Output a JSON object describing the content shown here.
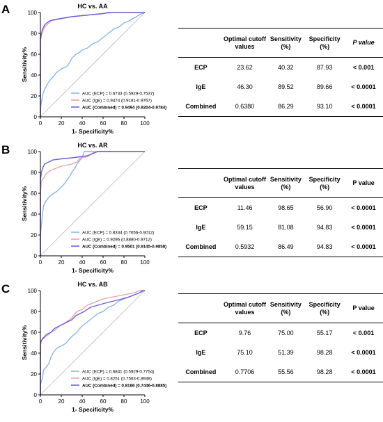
{
  "panels": [
    {
      "letter": "A",
      "chart_data": {
        "type": "line",
        "title": "HC vs. AA",
        "xlabel": "1- Specificity%",
        "ylabel": "Sensitivity%",
        "xlim": [
          0,
          100
        ],
        "ylim": [
          0,
          100
        ],
        "xticks": [
          0,
          20,
          40,
          60,
          80,
          100
        ],
        "yticks": [
          0,
          20,
          40,
          60,
          80,
          100
        ],
        "grid": false,
        "reference_line": [
          [
            0,
            0
          ],
          [
            100,
            100
          ]
        ],
        "legend_position": "bottom-right",
        "series": [
          {
            "name": "AUC (ECP) = 0.6733 (0.5929-0.7537)",
            "color": "#8ab4f0",
            "points": [
              [
                0,
                0
              ],
              [
                0,
                8
              ],
              [
                1,
                14
              ],
              [
                2,
                20
              ],
              [
                3,
                24
              ],
              [
                5,
                28
              ],
              [
                7,
                32
              ],
              [
                10,
                36
              ],
              [
                12,
                38
              ],
              [
                15,
                42
              ],
              [
                20,
                46
              ],
              [
                25,
                48
              ],
              [
                28,
                52
              ],
              [
                30,
                56
              ],
              [
                34,
                60
              ],
              [
                38,
                62
              ],
              [
                40,
                64
              ],
              [
                45,
                66
              ],
              [
                50,
                70
              ],
              [
                55,
                72
              ],
              [
                60,
                76
              ],
              [
                65,
                80
              ],
              [
                70,
                84
              ],
              [
                75,
                86
              ],
              [
                80,
                90
              ],
              [
                85,
                92
              ],
              [
                88,
                94
              ],
              [
                92,
                96
              ],
              [
                95,
                98
              ],
              [
                100,
                100
              ]
            ]
          },
          {
            "name": "AUC (IgE) = 0.9474 (0.9181-0.9767)",
            "color": "#f0a0a8",
            "points": [
              [
                0,
                0
              ],
              [
                0,
                72
              ],
              [
                1,
                78
              ],
              [
                2,
                82
              ],
              [
                4,
                86
              ],
              [
                6,
                88
              ],
              [
                8,
                90
              ],
              [
                10,
                92
              ],
              [
                15,
                93
              ],
              [
                20,
                94
              ],
              [
                25,
                95
              ],
              [
                30,
                96
              ],
              [
                40,
                97
              ],
              [
                50,
                98
              ],
              [
                60,
                99
              ],
              [
                70,
                100
              ],
              [
                100,
                100
              ]
            ]
          },
          {
            "name": "AUC (Combined) = 0.9494 (0.9204-0.9784)",
            "color": "#6a60e0",
            "points": [
              [
                0,
                0
              ],
              [
                0,
                74
              ],
              [
                1,
                80
              ],
              [
                2,
                84
              ],
              [
                4,
                88
              ],
              [
                6,
                90
              ],
              [
                9,
                92
              ],
              [
                12,
                93
              ],
              [
                18,
                94
              ],
              [
                24,
                95
              ],
              [
                30,
                96
              ],
              [
                40,
                97
              ],
              [
                50,
                98
              ],
              [
                60,
                99
              ],
              [
                65,
                100
              ],
              [
                100,
                100
              ]
            ]
          }
        ]
      },
      "table": {
        "headers": [
          "",
          "Optimal cutoff values",
          "Sensitivity (%)",
          "Specificity (%)",
          "P value"
        ],
        "p_italic": true,
        "rows": [
          [
            "ECP",
            "23.62",
            "40.32",
            "87.93",
            "< 0.001"
          ],
          [
            "IgE",
            "46.30",
            "89.52",
            "89.66",
            "< 0.0001"
          ],
          [
            "Combined",
            "0.6380",
            "86.29",
            "93.10",
            "< 0.0001"
          ]
        ]
      }
    },
    {
      "letter": "B",
      "chart_data": {
        "type": "line",
        "title": "HC vs. AR",
        "xlabel": "1- Specificity%",
        "ylabel": "Sensitivity%",
        "xlim": [
          0,
          100
        ],
        "ylim": [
          0,
          100
        ],
        "xticks": [
          0,
          20,
          40,
          60,
          80,
          100
        ],
        "yticks": [
          0,
          20,
          40,
          60,
          80,
          100
        ],
        "grid": false,
        "reference_line": [
          [
            0,
            0
          ],
          [
            100,
            100
          ]
        ],
        "legend_position": "bottom-right",
        "series": [
          {
            "name": "AUC (ECP) = 0.8334 (0.7656-0.9012)",
            "color": "#8ab4f0",
            "points": [
              [
                0,
                0
              ],
              [
                0,
                20
              ],
              [
                1,
                30
              ],
              [
                2,
                40
              ],
              [
                3,
                48
              ],
              [
                5,
                52
              ],
              [
                8,
                56
              ],
              [
                10,
                58
              ],
              [
                13,
                60
              ],
              [
                16,
                62
              ],
              [
                18,
                64
              ],
              [
                20,
                66
              ],
              [
                22,
                68
              ],
              [
                25,
                72
              ],
              [
                28,
                76
              ],
              [
                30,
                80
              ],
              [
                33,
                84
              ],
              [
                35,
                88
              ],
              [
                38,
                92
              ],
              [
                40,
                94
              ],
              [
                42,
                100
              ],
              [
                100,
                100
              ]
            ]
          },
          {
            "name": "AUC (IgE) = 0.9296 (0.8880-0.9712)",
            "color": "#f0a0a8",
            "points": [
              [
                0,
                0
              ],
              [
                0,
                60
              ],
              [
                1,
                72
              ],
              [
                3,
                74
              ],
              [
                5,
                78
              ],
              [
                7,
                80
              ],
              [
                10,
                82
              ],
              [
                15,
                84
              ],
              [
                20,
                86
              ],
              [
                30,
                88
              ],
              [
                35,
                90
              ],
              [
                38,
                94
              ],
              [
                45,
                95
              ],
              [
                52,
                100
              ],
              [
                100,
                100
              ]
            ]
          },
          {
            "name": "AUC (Combined) = 0.9501 (0.9145-0.9858)",
            "color": "#6a60e0",
            "points": [
              [
                0,
                0
              ],
              [
                0,
                72
              ],
              [
                1,
                80
              ],
              [
                2,
                84
              ],
              [
                4,
                88
              ],
              [
                8,
                90
              ],
              [
                12,
                92
              ],
              [
                20,
                93
              ],
              [
                30,
                94
              ],
              [
                38,
                95
              ],
              [
                45,
                96
              ],
              [
                55,
                100
              ],
              [
                100,
                100
              ]
            ]
          }
        ]
      },
      "table": {
        "headers": [
          "",
          "Optimal cutoff values",
          "Sensitivity (%)",
          "Specificity (%)",
          "P value"
        ],
        "p_italic": false,
        "rows": [
          [
            "ECP",
            "11.46",
            "98.65",
            "56.90",
            "< 0.0001"
          ],
          [
            "IgE",
            "59.15",
            "81.08",
            "94.83",
            "< 0.0001"
          ],
          [
            "Combined",
            "0.5932",
            "86.49",
            "94.83",
            "< 0.0001"
          ]
        ]
      }
    },
    {
      "letter": "C",
      "chart_data": {
        "type": "line",
        "title": "HC vs. AB",
        "xlabel": "1- Specificity%",
        "ylabel": "Sensitivity%",
        "xlim": [
          0,
          100
        ],
        "ylim": [
          0,
          100
        ],
        "xticks": [
          0,
          20,
          40,
          60,
          80,
          100
        ],
        "yticks": [
          0,
          20,
          40,
          60,
          80,
          100
        ],
        "grid": false,
        "reference_line": [
          [
            0,
            0
          ],
          [
            100,
            100
          ]
        ],
        "legend_position": "bottom-right",
        "series": [
          {
            "name": "AUC (ECP) = 0.6841 (0.5929-0.7754)",
            "color": "#8ab4f0",
            "points": [
              [
                0,
                0
              ],
              [
                0,
                10
              ],
              [
                2,
                16
              ],
              [
                3,
                24
              ],
              [
                5,
                26
              ],
              [
                8,
                30
              ],
              [
                10,
                36
              ],
              [
                12,
                40
              ],
              [
                15,
                44
              ],
              [
                18,
                46
              ],
              [
                22,
                48
              ],
              [
                25,
                50
              ],
              [
                30,
                56
              ],
              [
                35,
                60
              ],
              [
                38,
                64
              ],
              [
                40,
                66
              ],
              [
                45,
                70
              ],
              [
                50,
                74
              ],
              [
                55,
                78
              ],
              [
                60,
                80
              ],
              [
                65,
                84
              ],
              [
                70,
                86
              ],
              [
                75,
                90
              ],
              [
                80,
                92
              ],
              [
                85,
                94
              ],
              [
                90,
                96
              ],
              [
                95,
                98
              ],
              [
                100,
                100
              ]
            ]
          },
          {
            "name": "AUC (IgE) = 0.8251 (0.7563-0.8938)",
            "color": "#f0a0a8",
            "points": [
              [
                0,
                0
              ],
              [
                0,
                48
              ],
              [
                1,
                52
              ],
              [
                3,
                54
              ],
              [
                5,
                56
              ],
              [
                8,
                58
              ],
              [
                10,
                60
              ],
              [
                14,
                62
              ],
              [
                18,
                66
              ],
              [
                22,
                68
              ],
              [
                25,
                70
              ],
              [
                28,
                72
              ],
              [
                30,
                74
              ],
              [
                35,
                80
              ],
              [
                40,
                82
              ],
              [
                45,
                86
              ],
              [
                50,
                88
              ],
              [
                55,
                90
              ],
              [
                60,
                92
              ],
              [
                70,
                94
              ],
              [
                80,
                96
              ],
              [
                90,
                98
              ],
              [
                95,
                100
              ],
              [
                100,
                100
              ]
            ]
          },
          {
            "name": "AUC (Combined) = 0.8166 (0.7446-0.8885)",
            "color": "#6a60e0",
            "points": [
              [
                0,
                0
              ],
              [
                0,
                50
              ],
              [
                2,
                54
              ],
              [
                4,
                56
              ],
              [
                6,
                58
              ],
              [
                10,
                60
              ],
              [
                14,
                64
              ],
              [
                18,
                66
              ],
              [
                22,
                68
              ],
              [
                26,
                70
              ],
              [
                30,
                72
              ],
              [
                34,
                76
              ],
              [
                38,
                78
              ],
              [
                42,
                80
              ],
              [
                48,
                84
              ],
              [
                55,
                86
              ],
              [
                62,
                88
              ],
              [
                70,
                90
              ],
              [
                78,
                92
              ],
              [
                85,
                94
              ],
              [
                90,
                96
              ],
              [
                95,
                98
              ],
              [
                98,
                100
              ],
              [
                100,
                100
              ]
            ]
          }
        ]
      },
      "table": {
        "headers": [
          "",
          "Optimal cutoff values",
          "Sensitivity (%)",
          "Specificity (%)",
          "P value"
        ],
        "p_italic": false,
        "rows": [
          [
            "ECP",
            "9.76",
            "75.00",
            "55.17",
            "< 0.001"
          ],
          [
            "IgE",
            "75.10",
            "51.39",
            "98.28",
            "< 0.0001"
          ],
          [
            "Combined",
            "0.7706",
            "55.56",
            "98.28",
            "< 0.0001"
          ]
        ]
      }
    }
  ]
}
